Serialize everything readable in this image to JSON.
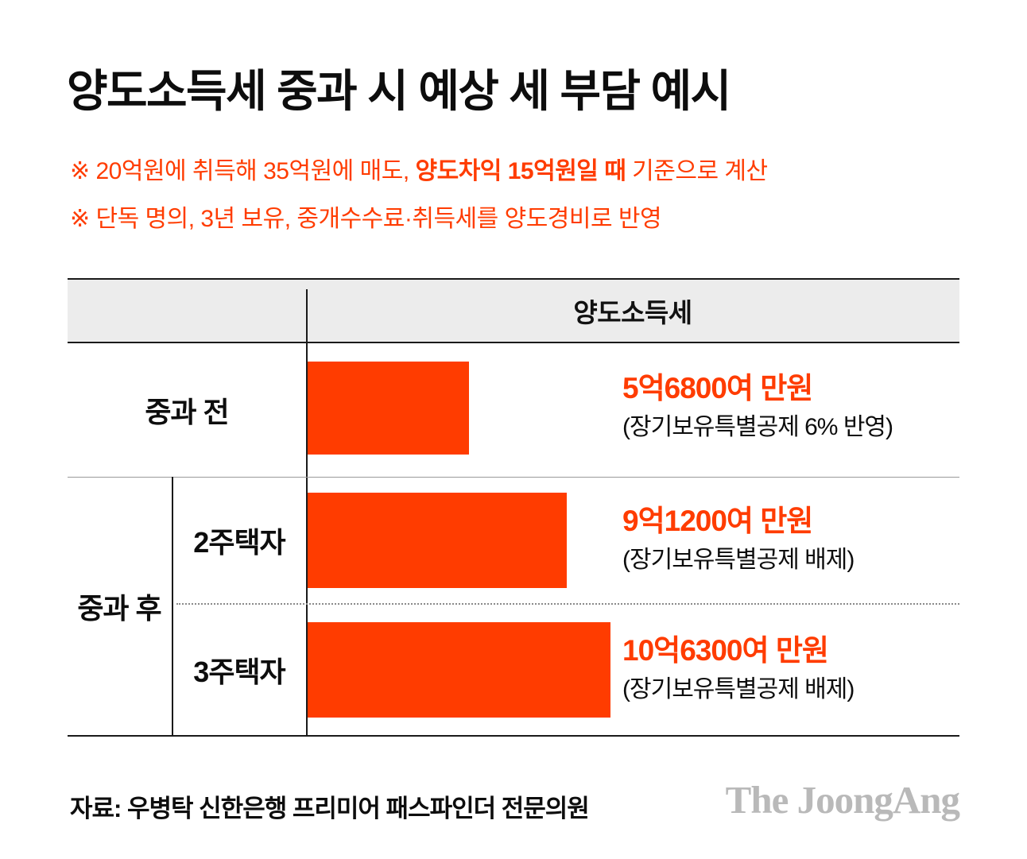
{
  "title": "양도소득세 중과 시 예상 세 부담 예시",
  "notes": {
    "line1_pre": "※ 20억원에 취득해 35억원에 매도, ",
    "line1_bold": "양도차익 15억원일 때",
    "line1_post": " 기준으로 계산",
    "line2": "※ 단독 명의, 3년 보유, 중개수수료·취득세를 양도경비로 반영"
  },
  "chart_data": {
    "type": "bar",
    "orientation": "horizontal",
    "title": "양도소득세 중과 시 예상 세 부담 예시",
    "column_header": "양도소득세",
    "unit": "억원",
    "categories": [
      "중과 전",
      "2주택자",
      "3주택자"
    ],
    "group_label": "중과 후",
    "group_members": [
      "2주택자",
      "3주택자"
    ],
    "values": [
      5.68,
      9.12,
      10.63
    ],
    "value_labels": [
      "5억6800여 만원",
      "9억1200여 만원",
      "10억6300여 만원"
    ],
    "value_notes": [
      "(장기보유특별공제 6% 반영)",
      "(장기보유특별공제 배제)",
      "(장기보유특별공제 배제)"
    ],
    "xlim": [
      0,
      12
    ],
    "grid": false,
    "legend": false,
    "bar_color": "#ff3c00"
  },
  "footer": {
    "source": "자료: 우병탁 신한은행 프리미어 패스파인더 전문의원",
    "logo": "The JoongAng"
  },
  "colors": {
    "accent": "#ff3c00",
    "header_bg": "#ececec",
    "logo_gray": "#b9b9b9"
  }
}
